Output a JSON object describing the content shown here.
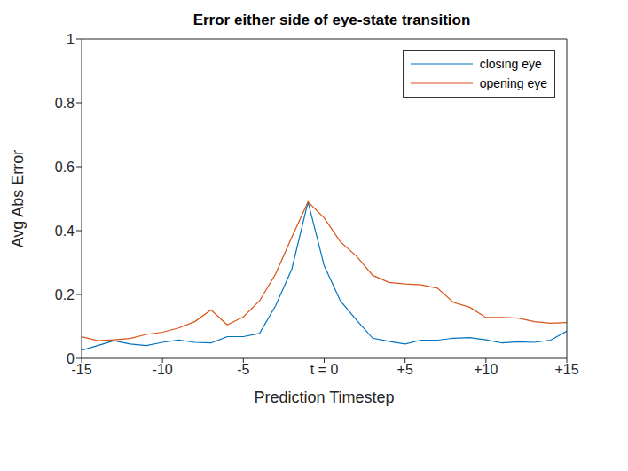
{
  "chart_data": {
    "type": "line",
    "title": "Error either side of eye-state transition",
    "x_label": "Prediction Timestep",
    "y_label": "Avg Abs Error",
    "x": [
      -15,
      -14,
      -13,
      -12,
      -11,
      -10,
      -9,
      -8,
      -7,
      -6,
      -5,
      -4,
      -3,
      -2,
      -1,
      0,
      1,
      2,
      3,
      4,
      5,
      6,
      7,
      8,
      9,
      10,
      11,
      12,
      13,
      14,
      15
    ],
    "series": [
      {
        "name": "closing eye",
        "color": "#0072bd",
        "values": [
          0.025,
          0.04,
          0.055,
          0.045,
          0.04,
          0.05,
          0.057,
          0.05,
          0.048,
          0.068,
          0.068,
          0.078,
          0.165,
          0.28,
          0.49,
          0.29,
          0.18,
          0.12,
          0.063,
          0.053,
          0.045,
          0.057,
          0.057,
          0.063,
          0.065,
          0.058,
          0.048,
          0.052,
          0.05,
          0.057,
          0.085
        ]
      },
      {
        "name": "opening eye",
        "color": "#d95319",
        "values": [
          0.068,
          0.055,
          0.058,
          0.062,
          0.075,
          0.082,
          0.095,
          0.115,
          0.152,
          0.105,
          0.13,
          0.18,
          0.265,
          0.38,
          0.49,
          0.44,
          0.365,
          0.32,
          0.26,
          0.238,
          0.233,
          0.23,
          0.22,
          0.175,
          0.16,
          0.128,
          0.128,
          0.126,
          0.115,
          0.11,
          0.112
        ]
      }
    ],
    "xlim": [
      -15,
      15
    ],
    "xticks": [
      -15,
      -10,
      -5,
      {
        "value": 0,
        "label": "t = 0"
      },
      {
        "value": 5,
        "label": "+5"
      },
      {
        "value": 10,
        "label": "+10"
      },
      {
        "value": 15,
        "label": "+15"
      }
    ],
    "ylim": [
      0,
      1
    ],
    "yticks": [
      0,
      0.2,
      0.4,
      0.6,
      0.8,
      1
    ],
    "grid": false,
    "legend": "upper right"
  }
}
